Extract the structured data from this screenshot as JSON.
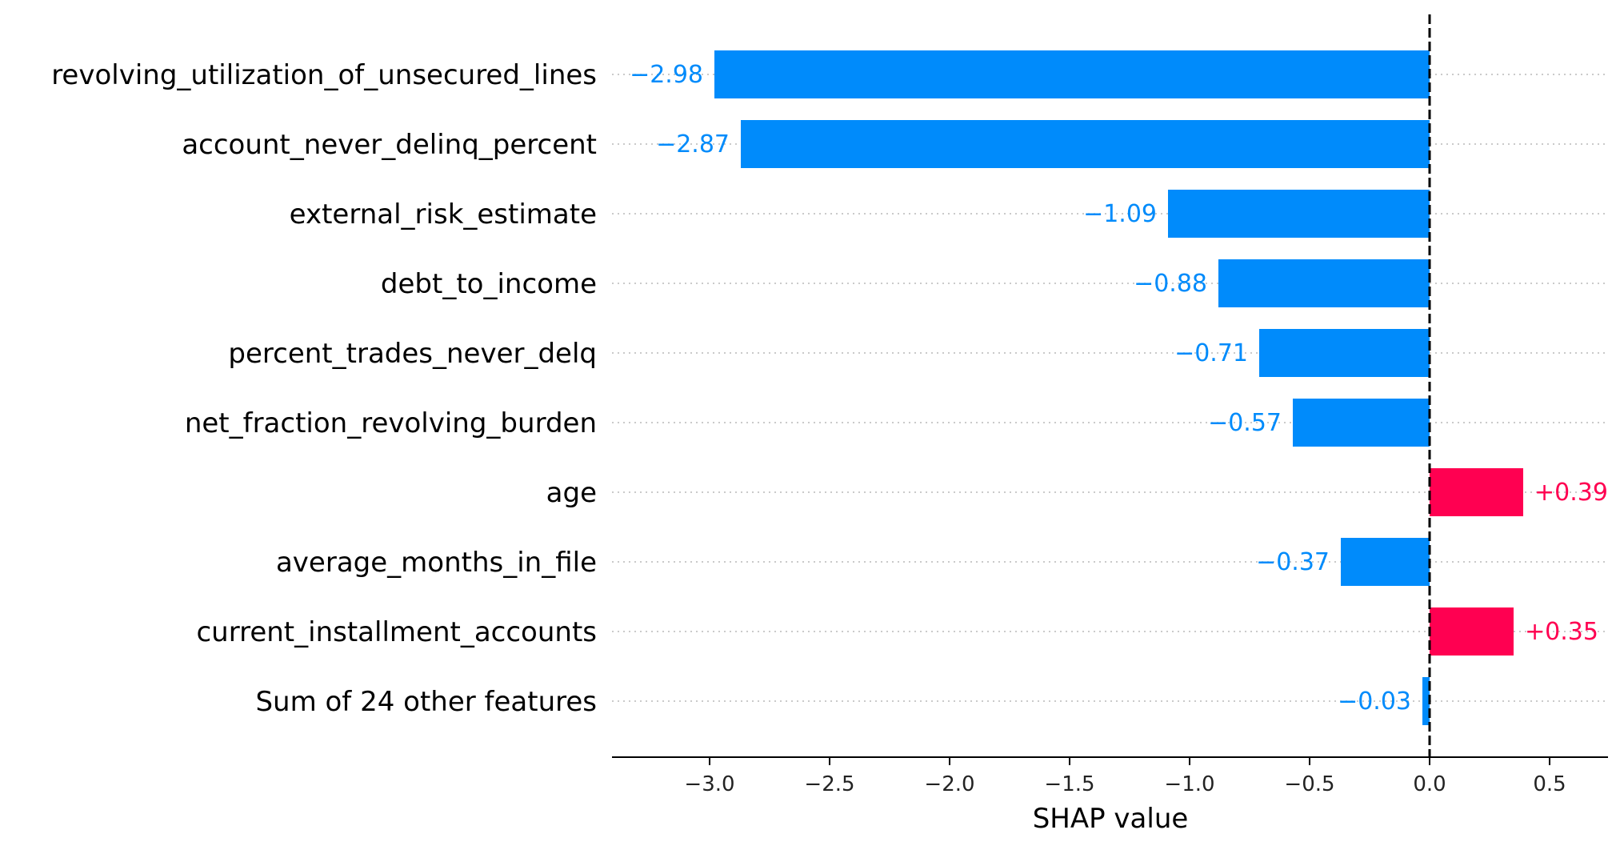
{
  "chart_data": {
    "type": "bar",
    "orientation": "horizontal",
    "xlabel": "SHAP value",
    "xlim": [
      -3.35,
      0.75
    ],
    "xticks": [
      -3.0,
      -2.5,
      -2.0,
      -1.5,
      -1.0,
      -0.5,
      0.0,
      0.5
    ],
    "xtick_labels": [
      "−3.0",
      "−2.5",
      "−2.0",
      "−1.5",
      "−1.0",
      "−0.5",
      "0.0",
      "0.5"
    ],
    "zero_line": true,
    "grid": "dotted-horizontal",
    "colors": {
      "negative": "#008bfb",
      "positive": "#ff0051"
    },
    "categories": [
      "revolving_utilization_of_unsecured_lines",
      "account_never_delinq_percent",
      "external_risk_estimate",
      "debt_to_income",
      "percent_trades_never_delq",
      "net_fraction_revolving_burden",
      "age",
      "average_months_in_file",
      "current_installment_accounts",
      "Sum of 24 other features"
    ],
    "values": [
      -2.98,
      -2.87,
      -1.09,
      -0.88,
      -0.71,
      -0.57,
      0.39,
      -0.37,
      0.35,
      -0.03
    ],
    "value_labels": [
      "−2.98",
      "−2.87",
      "−1.09",
      "−0.88",
      "−0.71",
      "−0.57",
      "+0.39",
      "−0.37",
      "+0.35",
      "−0.03"
    ]
  }
}
